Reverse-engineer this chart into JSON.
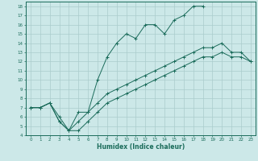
{
  "xlabel": "Humidex (Indice chaleur)",
  "xlim": [
    -0.5,
    23.5
  ],
  "ylim": [
    4,
    18.5
  ],
  "yticks": [
    4,
    5,
    6,
    7,
    8,
    9,
    10,
    11,
    12,
    13,
    14,
    15,
    16,
    17,
    18
  ],
  "xticks": [
    0,
    1,
    2,
    3,
    4,
    5,
    6,
    7,
    8,
    9,
    10,
    11,
    12,
    13,
    14,
    15,
    16,
    17,
    18,
    19,
    20,
    21,
    22,
    23
  ],
  "bg_color": "#cce8e8",
  "grid_color": "#aacccc",
  "line_color": "#1a6b5a",
  "line1_x": [
    0,
    1,
    2,
    3,
    4,
    5,
    6,
    7,
    8,
    9,
    10,
    11,
    12,
    13,
    14,
    15,
    16,
    17,
    18
  ],
  "line1_y": [
    7,
    7,
    7.5,
    6,
    4.5,
    6.5,
    6.5,
    10,
    12.5,
    14,
    15,
    14.5,
    16,
    16,
    15,
    16.5,
    17,
    18,
    18
  ],
  "line2_x": [
    0,
    1,
    2,
    3,
    4,
    5,
    6,
    7,
    8,
    9,
    10,
    11,
    12,
    13,
    14,
    15,
    16,
    17,
    18,
    19,
    20,
    21,
    22,
    23
  ],
  "line2_y": [
    7,
    7,
    7.5,
    5.5,
    4.5,
    5.5,
    6.5,
    7.5,
    8.5,
    9,
    9.5,
    10,
    10.5,
    11,
    11.5,
    12,
    12.5,
    13,
    13.5,
    13.5,
    14,
    13,
    13,
    12
  ],
  "line3_x": [
    0,
    1,
    2,
    3,
    4,
    5,
    6,
    7,
    8,
    9,
    10,
    11,
    12,
    13,
    14,
    15,
    16,
    17,
    18,
    19,
    20,
    21,
    22,
    23
  ],
  "line3_y": [
    7,
    7,
    7.5,
    5.5,
    4.5,
    4.5,
    5.5,
    6.5,
    7.5,
    8,
    8.5,
    9,
    9.5,
    10,
    10.5,
    11,
    11.5,
    12,
    12.5,
    12.5,
    13,
    12.5,
    12.5,
    12
  ]
}
